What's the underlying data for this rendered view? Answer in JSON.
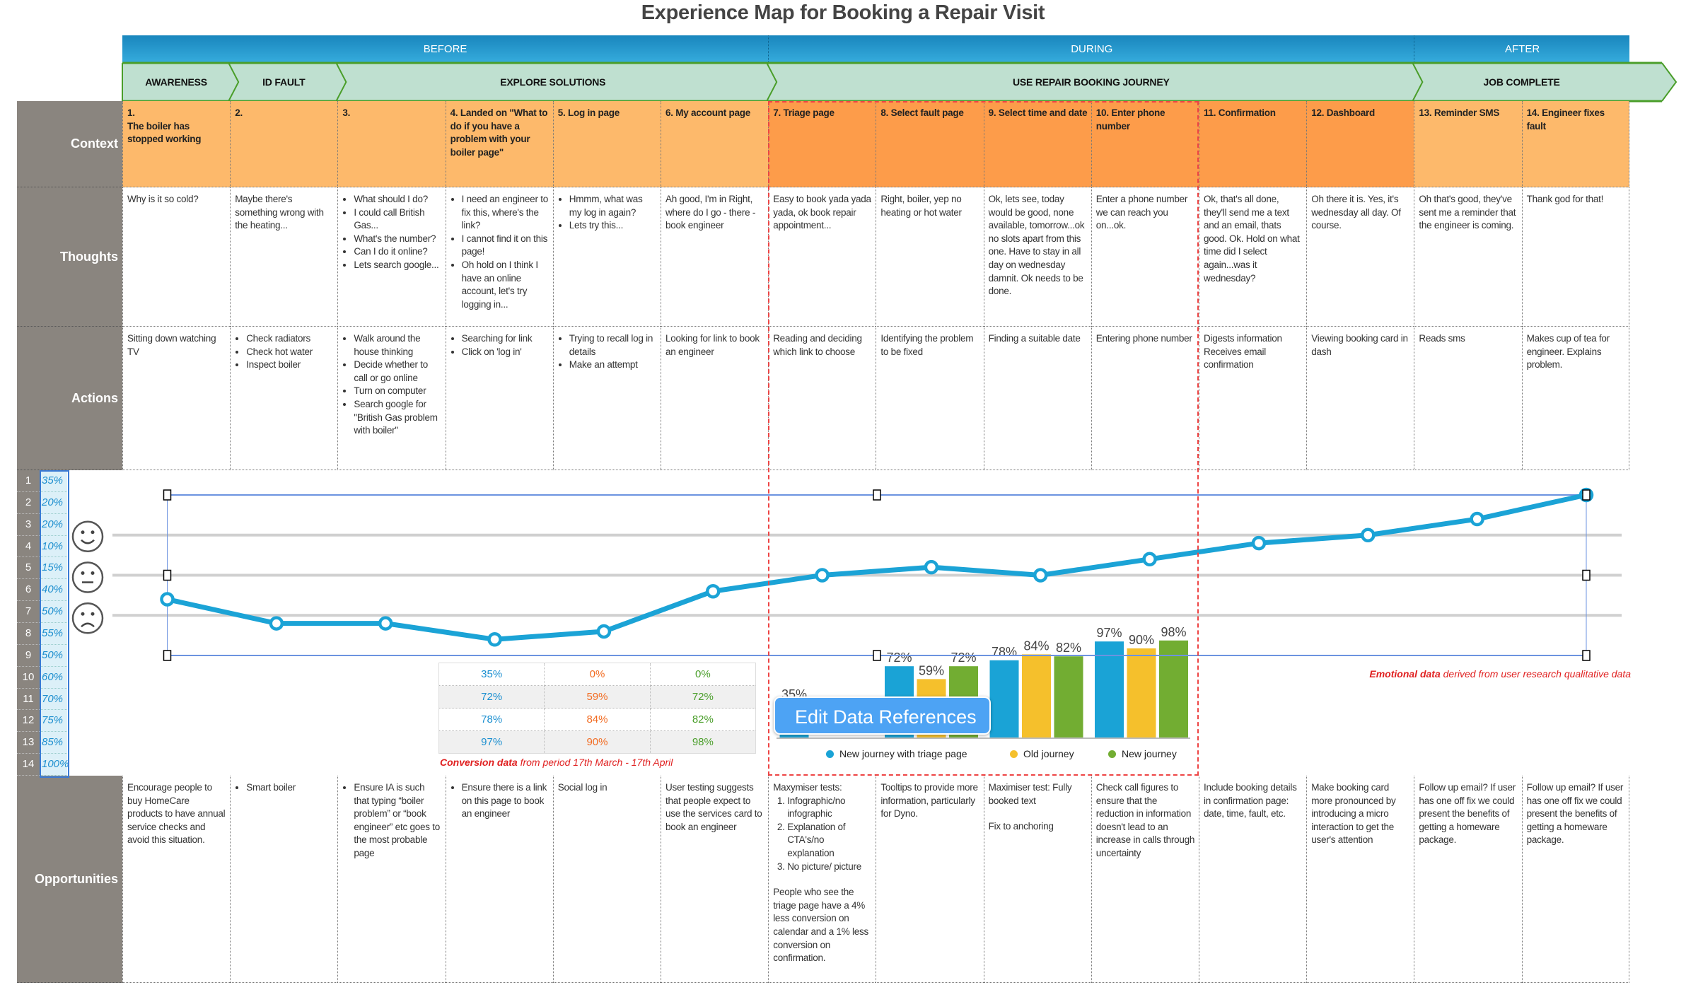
{
  "title": "Experience Map for Booking a Repair Visit",
  "phases": [
    {
      "label": "BEFORE",
      "start": 0,
      "span": 6
    },
    {
      "label": "DURING",
      "start": 6,
      "span": 6
    },
    {
      "label": "AFTER",
      "start": 12,
      "span": 2
    }
  ],
  "stages": [
    {
      "label": "AWARENESS",
      "start": 0,
      "span": 1
    },
    {
      "label": "ID FAULT",
      "start": 1,
      "span": 1
    },
    {
      "label": "EXPLORE SOLUTIONS",
      "start": 2,
      "span": 4
    },
    {
      "label": "USE REPAIR BOOKING JOURNEY",
      "start": 6,
      "span": 6
    },
    {
      "label": "JOB COMPLETE",
      "start": 12,
      "span": 2
    }
  ],
  "row_labels": {
    "context": "Context",
    "thoughts": "Thoughts",
    "actions": "Actions",
    "opportunities": "Opportunities"
  },
  "context": [
    [
      {
        "h": "1."
      },
      {
        "h": "The boiler has stopped working"
      }
    ],
    [
      {
        "h": "2."
      }
    ],
    [
      {
        "h": "3."
      }
    ],
    [
      {
        "h": "4. Landed on \"What to do if you have a problem with your boiler page\""
      }
    ],
    [
      {
        "h": "5. Log in page"
      }
    ],
    [
      {
        "h": "6. My account page"
      }
    ],
    [
      {
        "h": "7. Triage page"
      }
    ],
    [
      {
        "h": "8. Select fault page"
      }
    ],
    [
      {
        "h": "9. Select time and date"
      }
    ],
    [
      {
        "h": "10. Enter phone number"
      }
    ],
    [
      {
        "h": "11. Confirmation"
      }
    ],
    [
      {
        "h": "12. Dashboard"
      }
    ],
    [
      {
        "h": "13. Reminder SMS"
      }
    ],
    [
      {
        "h": "14. Engineer fixes fault"
      }
    ]
  ],
  "thoughts": [
    [
      {
        "p": "Why is it so cold?"
      }
    ],
    [
      {
        "p": "Maybe there's something wrong with the heating..."
      }
    ],
    [
      {
        "ul": [
          "What should I do?",
          "I could call British Gas...",
          "What's the number?",
          "Can I do it online?",
          "Lets search google..."
        ]
      }
    ],
    [
      {
        "ul": [
          "I need an engineer to fix this, where's the link?",
          "I cannot find it on this page!",
          "Oh hold on I think I have an online account, let's try logging in..."
        ]
      }
    ],
    [
      {
        "ul": [
          "Hmmm, what was my log in again?",
          "Lets try this..."
        ]
      }
    ],
    [
      {
        "p": "Ah good, I'm in Right, where do I go - there - book engineer"
      }
    ],
    [
      {
        "p": "Easy to book yada yada yada, ok book repair appointment..."
      }
    ],
    [
      {
        "p": "Right, boiler, yep no heating or hot water"
      }
    ],
    [
      {
        "p": "Ok, lets see, today would be good, none available, tomorrow...ok no slots apart from this one. Have to stay in all day on wednesday damnit. Ok needs to be done."
      }
    ],
    [
      {
        "p": "Enter a phone number we can reach you on...ok."
      }
    ],
    [
      {
        "p": "Ok, that's all done, they'll send me a text and an email, thats good. Ok. Hold on what time did I select again...was it wednesday?"
      }
    ],
    [
      {
        "p": "Oh there it is. Yes, it's wednesday all day. Of course."
      }
    ],
    [
      {
        "p": "Oh that's good, they've sent me a reminder that the engineer is coming."
      }
    ],
    [
      {
        "p": "Thank god for that!"
      }
    ]
  ],
  "actions": [
    [
      {
        "p": "Sitting down watching TV"
      }
    ],
    [
      {
        "ul": [
          "Check radiators",
          "Check hot water",
          "Inspect boiler"
        ]
      }
    ],
    [
      {
        "ul": [
          "Walk around the house thinking",
          "Decide whether to call or go online",
          "Turn on computer",
          "Search google for \"British Gas problem with boiler\""
        ]
      }
    ],
    [
      {
        "ul": [
          "Searching for link",
          "Click on 'log in'"
        ]
      }
    ],
    [
      {
        "ul": [
          "Trying to recall log in details",
          "Make an attempt"
        ]
      }
    ],
    [
      {
        "p": "Looking for link to book an engineer"
      }
    ],
    [
      {
        "p": "Reading and deciding which link to choose"
      }
    ],
    [
      {
        "p": "Identifying the problem to be fixed"
      }
    ],
    [
      {
        "p": "Finding a suitable date"
      }
    ],
    [
      {
        "p": "Entering phone number"
      }
    ],
    [
      {
        "p": "Digests information Receives email confirmation"
      }
    ],
    [
      {
        "p": "Viewing booking card in dash"
      }
    ],
    [
      {
        "p": "Reads sms"
      }
    ],
    [
      {
        "p": "Makes cup of tea for engineer. Explains problem."
      }
    ]
  ],
  "opportunities": [
    [
      {
        "p": "Encourage people to buy HomeCare products to have annual service checks and avoid this situation."
      }
    ],
    [
      {
        "ul": [
          "Smart boiler"
        ]
      }
    ],
    [
      {
        "ul": [
          "Ensure IA is such that typing “boiler problem” or “book engineer” etc goes to the most probable page"
        ]
      }
    ],
    [
      {
        "ul": [
          "Ensure there is a link on this page to book an engineer"
        ]
      }
    ],
    [
      {
        "p": "Social log in"
      }
    ],
    [
      {
        "p": "User testing suggests that people expect to use the services card to book an engineer"
      }
    ],
    [
      {
        "p": "Maxymiser tests:"
      },
      {
        "ol": [
          "Infographic/no infographic",
          "Explanation of CTA's/no explanation",
          "No picture/ picture"
        ]
      },
      {
        "p": "People who see the triage page have a 4% less conversion on calendar and a 1% less conversion on confirmation."
      }
    ],
    [
      {
        "p": "Tooltips to provide more information, particularly for Dyno."
      }
    ],
    [
      {
        "p": "Maximiser test: Fully booked text"
      },
      {
        "pg": "Fix to anchoring"
      }
    ],
    [
      {
        "p": "Check call figures to ensure that the reduction in information doesn't lead to an increase in calls through uncertainty"
      }
    ],
    [
      {
        "p": "Include booking details in confirmation page: date, time, fault, etc."
      }
    ],
    [
      {
        "p": "Make booking card more pronounced by introducing a micro interaction to get the user's attention"
      }
    ],
    [
      {
        "p": "Follow up email? If user has one off fix we could present the benefits of getting a homeware package."
      }
    ],
    [
      {
        "p": "Follow up email? If user has one off fix we could present the benefits of getting a homeware package."
      }
    ]
  ],
  "emotion_column": {
    "row_numbers": [
      "1",
      "2",
      "3",
      "4",
      "5",
      "6",
      "7",
      "8",
      "9",
      "10",
      "11",
      "12",
      "13",
      "14"
    ],
    "percents": [
      "35%",
      "20%",
      "20%",
      "10%",
      "15%",
      "40%",
      "50%",
      "55%",
      "50%",
      "60%",
      "70%",
      "75%",
      "85%",
      "100%"
    ]
  },
  "faces": [
    "happy-face",
    "neutral-face",
    "sad-face"
  ],
  "emotion_caption": {
    "bold": "Emotional data",
    "rest": " derived from user research qualitative data"
  },
  "conversion": {
    "table": [
      [
        "35%",
        "0%",
        "0%"
      ],
      [
        "72%",
        "59%",
        "72%"
      ],
      [
        "78%",
        "84%",
        "82%"
      ],
      [
        "97%",
        "90%",
        "98%"
      ]
    ],
    "caption_bold": "Conversion data",
    "caption_rest": " from period 17th March - 17th April"
  },
  "edit_button": "Edit Data References",
  "chart_data": [
    {
      "type": "line",
      "x": [
        "1",
        "2",
        "3",
        "4",
        "5",
        "6",
        "7",
        "8",
        "9",
        "10",
        "11",
        "12",
        "13",
        "14"
      ],
      "values": [
        35,
        20,
        20,
        10,
        15,
        40,
        50,
        55,
        50,
        60,
        70,
        75,
        85,
        100
      ],
      "ylim": [
        0,
        100
      ],
      "gridlines": [
        25,
        50,
        75
      ],
      "color": "#1BA3D6"
    },
    {
      "type": "bar",
      "categories": [
        "7",
        "8",
        "9",
        "10"
      ],
      "series": [
        {
          "name": "New journey with triage page",
          "values": [
            35,
            72,
            78,
            97
          ],
          "color": "#1AA3D6"
        },
        {
          "name": "Old journey",
          "values": [
            0,
            59,
            84,
            90
          ],
          "color": "#F5C02C"
        },
        {
          "name": "New journey",
          "values": [
            0,
            72,
            82,
            98
          ],
          "color": "#72AD32"
        }
      ],
      "ylim": [
        0,
        100
      ],
      "legend": "bottom"
    }
  ],
  "colors": {
    "context_light": "#FDB96B",
    "context_dark": "#FD9C4A",
    "label_gray": "#8A857F",
    "stage_fill": "#BFE0D0",
    "stage_border": "#4A9E2A",
    "highlight_dash": "#EE4444"
  }
}
